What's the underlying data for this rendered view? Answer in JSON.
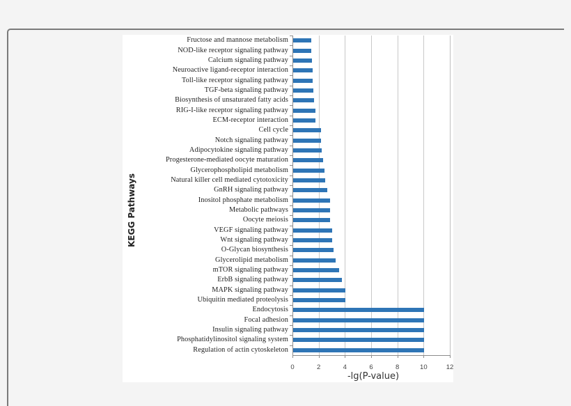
{
  "chart_data": {
    "type": "bar",
    "orientation": "horizontal",
    "title": "",
    "xlabel": "-lg(P-value)",
    "ylabel": "KEGG Pathways",
    "xlim": [
      0,
      12
    ],
    "xticks": [
      "0",
      "2",
      "4",
      "6",
      "8",
      "10",
      "12"
    ],
    "grid": "vertical",
    "legend": "none",
    "bar_color": "#2e75b6",
    "categories": [
      "Fructose and mannose metabolism",
      "NOD-like receptor signaling pathway",
      "Calcium signaling pathway",
      "Neuroactive ligand-receptor interaction",
      "Toll-like receptor signaling pathway",
      "TGF-beta signaling pathway",
      "Biosynthesis of unsaturated fatty acids",
      "RIG-I-like receptor signaling pathway",
      "ECM-receptor interaction",
      "Cell cycle",
      "Notch signaling pathway",
      "Adipocytokine signaling pathway",
      "Progesterone-mediated oocyte maturation",
      "Glycerophospholipid metabolism",
      "Natural killer cell mediated cytotoxicity",
      "GnRH signaling pathway",
      "Inositol phosphate metabolism",
      "Metabolic pathways",
      "Oocyte meiosis",
      "VEGF signaling pathway",
      "Wnt signaling pathway",
      "O-Glycan biosynthesis",
      "Glycerolipid metabolism",
      "mTOR signaling pathway",
      "ErbB signaling pathway",
      "MAPK signaling pathway",
      "Ubiquitin mediated proteolysis",
      "Endocytosis",
      "Focal adhesion",
      "Insulin signaling pathway",
      "Phosphatidylinositol signaling system",
      "Regulation of actin cytoskeleton"
    ],
    "values": [
      1.4,
      1.4,
      1.45,
      1.5,
      1.5,
      1.55,
      1.6,
      1.7,
      1.7,
      2.15,
      2.15,
      2.2,
      2.3,
      2.4,
      2.45,
      2.6,
      2.8,
      2.8,
      2.8,
      2.95,
      2.95,
      3.1,
      3.25,
      3.5,
      3.7,
      4.0,
      4.0,
      10,
      10,
      10,
      10,
      10
    ]
  }
}
